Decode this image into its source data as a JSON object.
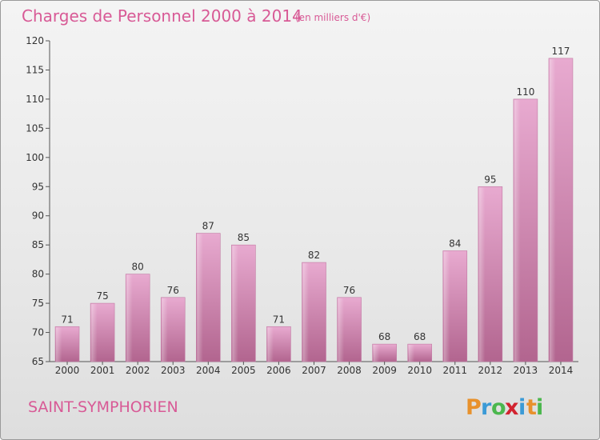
{
  "chart_data": {
    "type": "bar",
    "title": "Charges de Personnel 2000 à 2014",
    "subtitle": "(en milliers d'€)",
    "categories": [
      "2000",
      "2001",
      "2002",
      "2003",
      "2004",
      "2005",
      "2006",
      "2007",
      "2008",
      "2009",
      "2010",
      "2011",
      "2012",
      "2013",
      "2014"
    ],
    "values": [
      71,
      75,
      80,
      76,
      87,
      85,
      71,
      82,
      76,
      68,
      68,
      84,
      95,
      110,
      117
    ],
    "ylim": [
      65,
      120
    ],
    "yticks": [
      65,
      70,
      75,
      80,
      85,
      90,
      95,
      100,
      105,
      110,
      115,
      120
    ],
    "grid": false,
    "bar_color": "#d98ab6"
  },
  "commune": "SAINT-SYMPHORIEN",
  "logo": {
    "letters": [
      "P",
      "r",
      "o",
      "x",
      "i",
      "t",
      "i"
    ],
    "colors": [
      "#e8912c",
      "#3b9ad6",
      "#4bb74e",
      "#d2232f",
      "#3b9ad6",
      "#e8912c",
      "#4bb74e"
    ]
  }
}
